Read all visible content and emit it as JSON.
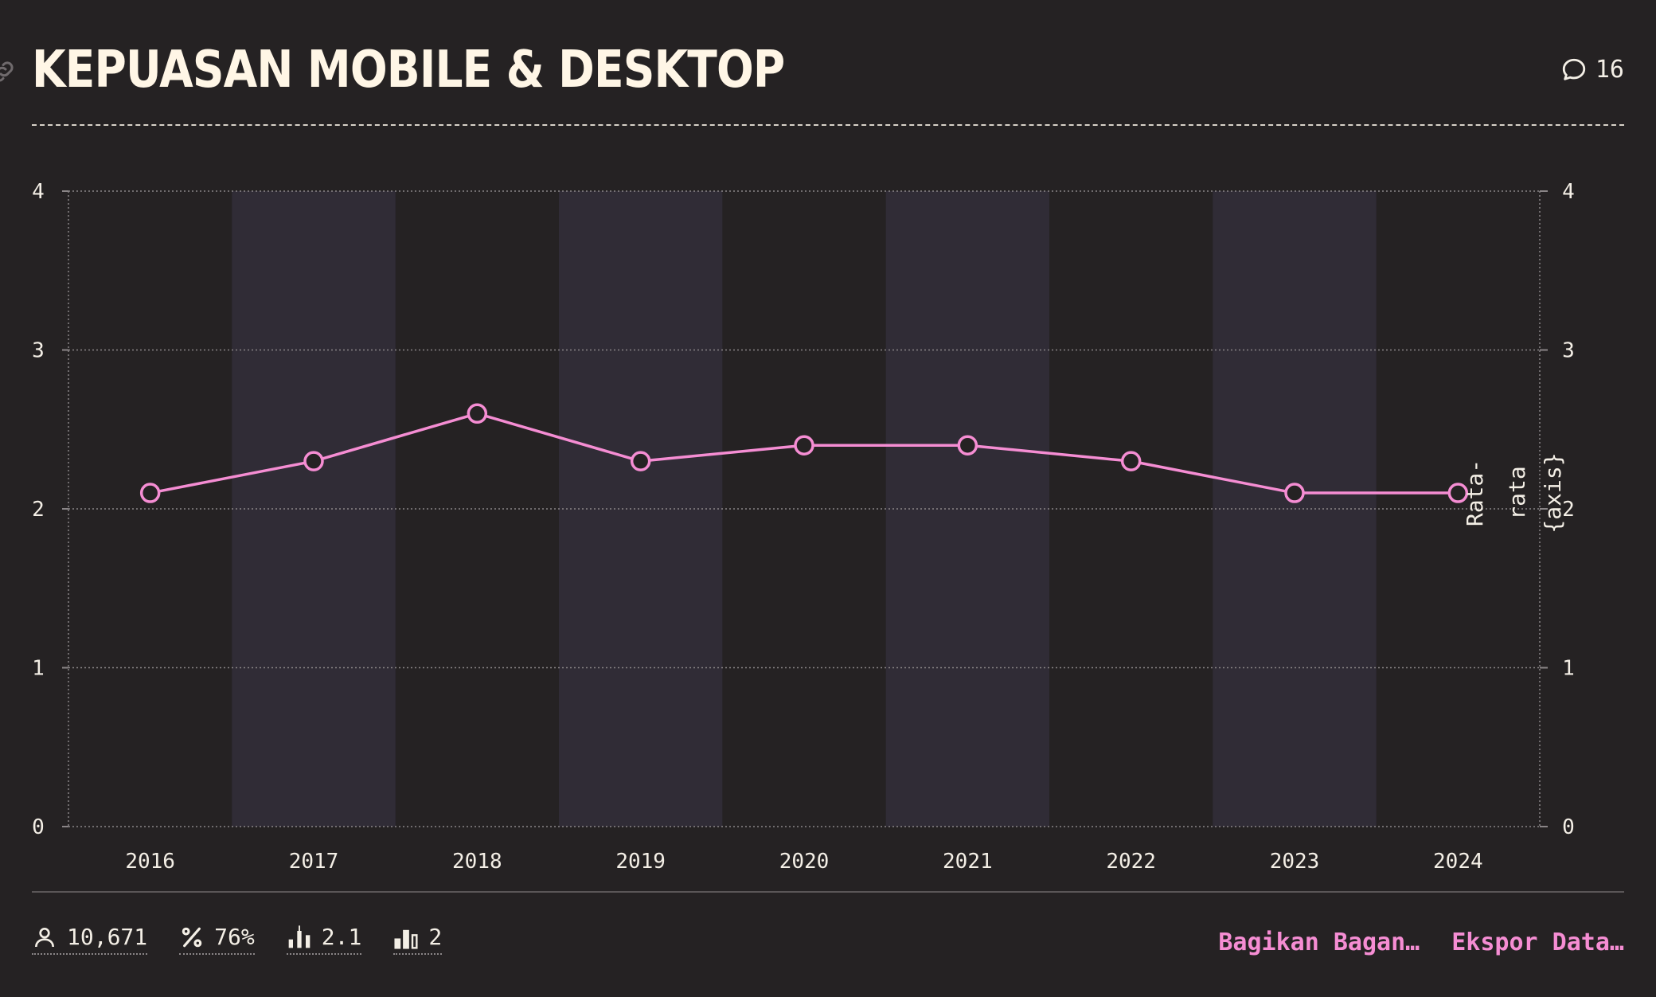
{
  "header": {
    "title": "KEPUASAN MOBILE & DESKTOP",
    "comment_count": "16"
  },
  "footer": {
    "stats": [
      {
        "icon": "user-icon",
        "value": "10,671"
      },
      {
        "icon": "percent-icon",
        "value": "76%"
      },
      {
        "icon": "candlestick-icon",
        "value": "2.1"
      },
      {
        "icon": "bar-chart-icon",
        "value": "2"
      }
    ],
    "share_label": "Bagikan Bagan…",
    "export_label": "Ekspor Data…"
  },
  "chart_data": {
    "type": "line",
    "categories": [
      "2016",
      "2017",
      "2018",
      "2019",
      "2020",
      "2021",
      "2022",
      "2023",
      "2024"
    ],
    "series": [
      {
        "values": [
          2.1,
          2.3,
          2.6,
          2.3,
          2.4,
          2.4,
          2.3,
          2.1,
          2.1
        ]
      }
    ],
    "ylim": [
      0,
      4
    ],
    "y_ticks": [
      0,
      1,
      2,
      3,
      4
    ],
    "left_axis_ticks": [
      "0",
      "1",
      "2",
      "3",
      "4"
    ],
    "right_axis_ticks": [
      "0",
      "1",
      "2",
      "3",
      "4"
    ],
    "right_axis_label_lines": [
      "Rata-",
      "rata",
      "{axis}"
    ],
    "grid": true,
    "alternating_column_bands": true,
    "colors": {
      "line": "#f58dd3",
      "marker_fill": "#252223",
      "band": "#302c36",
      "grid": "#8a8587",
      "text": "#f4efe6"
    }
  }
}
